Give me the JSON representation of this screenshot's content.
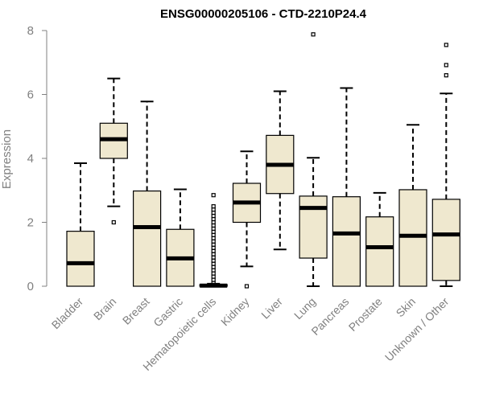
{
  "chart_data": {
    "type": "boxplot",
    "title": "ENSG00000205106 - CTD-2210P24.4",
    "ylabel": "Expression",
    "ylim": [
      0,
      8
    ],
    "yticks": [
      0,
      2,
      4,
      6,
      8
    ],
    "box_color": "#EFE8CF",
    "categories": [
      "Bladder",
      "Brain",
      "Breast",
      "Gastric",
      "Hematopoietic cells",
      "Kidney",
      "Liver",
      "Lung",
      "Pancreas",
      "Prostate",
      "Skin",
      "Unknown / Other"
    ],
    "boxes": [
      {
        "min": 0,
        "q1": 0,
        "median": 0.72,
        "q3": 1.72,
        "max": 3.85,
        "outliers": []
      },
      {
        "min": 2.5,
        "q1": 4.0,
        "median": 4.6,
        "q3": 5.1,
        "max": 6.5,
        "outliers": [
          2.0
        ]
      },
      {
        "min": 0,
        "q1": 0,
        "median": 1.85,
        "q3": 2.98,
        "max": 5.78,
        "outliers": []
      },
      {
        "min": 0,
        "q1": 0,
        "median": 0.87,
        "q3": 1.78,
        "max": 3.03,
        "outliers": []
      },
      {
        "min": 0,
        "q1": 0,
        "median": 0.02,
        "q3": 0.05,
        "max": 0.08,
        "outliers": [
          0.1,
          0.2,
          0.3,
          0.4,
          0.5,
          0.6,
          0.7,
          0.8,
          0.9,
          1.0,
          1.1,
          1.2,
          1.3,
          1.4,
          1.5,
          1.6,
          1.7,
          1.8,
          1.9,
          2.0,
          2.1,
          2.2,
          2.3,
          2.4,
          2.5,
          2.85
        ]
      },
      {
        "min": 0.62,
        "q1": 2.0,
        "median": 2.62,
        "q3": 3.22,
        "max": 4.22,
        "outliers": [
          0.0
        ]
      },
      {
        "min": 1.15,
        "q1": 2.9,
        "median": 3.8,
        "q3": 4.72,
        "max": 6.1,
        "outliers": []
      },
      {
        "min": 0,
        "q1": 0.88,
        "median": 2.45,
        "q3": 2.82,
        "max": 4.02,
        "outliers": [
          7.88
        ]
      },
      {
        "min": 0,
        "q1": 0,
        "median": 1.65,
        "q3": 2.8,
        "max": 6.2,
        "outliers": []
      },
      {
        "min": 0,
        "q1": 0,
        "median": 1.22,
        "q3": 2.17,
        "max": 2.92,
        "outliers": []
      },
      {
        "min": 0,
        "q1": 0,
        "median": 1.58,
        "q3": 3.02,
        "max": 5.05,
        "outliers": []
      },
      {
        "min": 0,
        "q1": 0.18,
        "median": 1.62,
        "q3": 2.72,
        "max": 6.03,
        "outliers": [
          6.6,
          6.92,
          7.55
        ]
      }
    ]
  }
}
